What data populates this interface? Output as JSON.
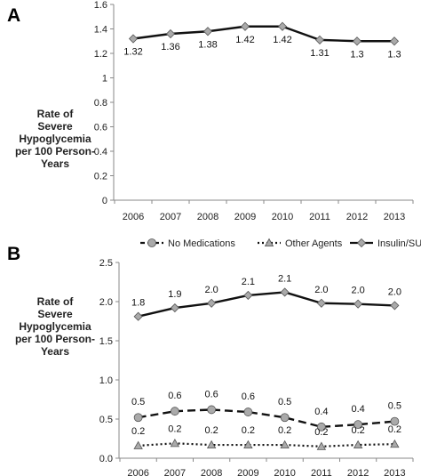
{
  "chart_data": [
    {
      "panel": "A",
      "type": "line",
      "ylabel_lines": [
        "Rate of",
        "Severe",
        "Hypoglycemia",
        "per 100 Person-",
        "Years"
      ],
      "x": [
        "2006",
        "2007",
        "2008",
        "2009",
        "2010",
        "2011",
        "2012",
        "2013"
      ],
      "ylim": [
        0,
        1.6
      ],
      "yticks": [
        "0",
        "0.2",
        "0.4",
        "0.6",
        "0.8",
        "1",
        "1.2",
        "1.4",
        "1.6"
      ],
      "grid": false,
      "legend": null,
      "series": [
        {
          "name": "",
          "values": [
            1.32,
            1.36,
            1.38,
            1.42,
            1.42,
            1.31,
            1.3,
            1.3
          ],
          "labels": [
            "1.32",
            "1.36",
            "1.38",
            "1.42",
            "1.42",
            "1.31",
            "1.3",
            "1.3"
          ],
          "style": "solid",
          "marker": "diamond",
          "color": "#111111",
          "marker_color": "#aaaaaa"
        }
      ]
    },
    {
      "panel": "B",
      "type": "line",
      "ylabel_lines": [
        "Rate of",
        "Severe",
        "Hypoglycemia",
        "per 100 Person-",
        "Years"
      ],
      "x": [
        "2006",
        "2007",
        "2008",
        "2009",
        "2010",
        "2011",
        "2012",
        "2013"
      ],
      "ylim": [
        0,
        2.5
      ],
      "yticks": [
        "0.0",
        "0.5",
        "1.0",
        "1.5",
        "2.0",
        "2.5"
      ],
      "grid": false,
      "legend": "top",
      "series": [
        {
          "name": "No Medications",
          "values": [
            0.52,
            0.6,
            0.62,
            0.59,
            0.52,
            0.4,
            0.43,
            0.47
          ],
          "labels": [
            "0.5",
            "0.6",
            "0.6",
            "0.6",
            "0.5",
            "0.4",
            "0.4",
            "0.5"
          ],
          "style": "dashed",
          "marker": "circle",
          "color": "#111111",
          "marker_color": "#aaaaaa"
        },
        {
          "name": "Other Agents",
          "values": [
            0.16,
            0.19,
            0.17,
            0.17,
            0.17,
            0.15,
            0.17,
            0.18
          ],
          "labels": [
            "0.2",
            "0.2",
            "0.2",
            "0.2",
            "0.2",
            "0.2",
            "0.2",
            "0.2"
          ],
          "style": "dotted",
          "marker": "triangle",
          "color": "#111111",
          "marker_color": "#aaaaaa"
        },
        {
          "name": "Insulin/SU",
          "values": [
            1.81,
            1.92,
            1.98,
            2.08,
            2.12,
            1.98,
            1.97,
            1.95
          ],
          "labels": [
            "1.8",
            "1.9",
            "2.0",
            "2.1",
            "2.1",
            "2.0",
            "2.0",
            "2.0"
          ],
          "style": "solid",
          "marker": "diamond",
          "color": "#111111",
          "marker_color": "#aaaaaa"
        }
      ]
    }
  ]
}
